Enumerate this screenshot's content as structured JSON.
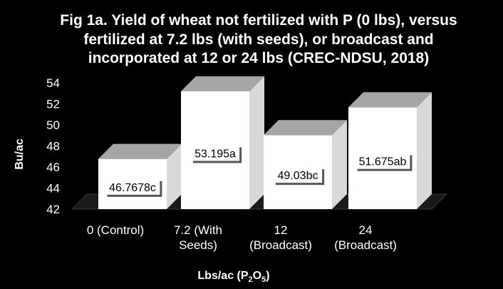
{
  "chart_data": {
    "type": "bar",
    "title_lines": [
      "Fig 1a. Yield of wheat not fertilized with P (0 lbs), versus",
      "fertilized at 7.2 lbs (with seeds), or broadcast and",
      "incorporated at 12 or 24 lbs (CREC-NDSU, 2018)"
    ],
    "categories": [
      [
        "0 (Control)"
      ],
      [
        "7.2 (With",
        "Seeds)"
      ],
      [
        "12",
        "(Broadcast)"
      ],
      [
        "24",
        "(Broadcast)"
      ]
    ],
    "values": [
      46.7678,
      53.195,
      49.03,
      51.675
    ],
    "data_labels": [
      "46.7678c",
      "53.195a",
      "49.03bc",
      "51.675ab"
    ],
    "ylabel": "Bu/ac",
    "xlabel_main": "Lbs/ac (P",
    "xlabel_sub1": "2",
    "xlabel_mid": "O",
    "xlabel_sub2": "5",
    "xlabel_end": ")",
    "ylim": [
      42,
      54
    ],
    "yticks": [
      42,
      44,
      46,
      48,
      50,
      52,
      54
    ],
    "grid": false,
    "legend": "none",
    "colors": {
      "background": "#000000",
      "bar_front": "#ffffff",
      "bar_side": "#d9d9d9",
      "bar_top": "#a6a6a6",
      "floor": "#1a1a1a",
      "text": "#ffffff"
    }
  }
}
